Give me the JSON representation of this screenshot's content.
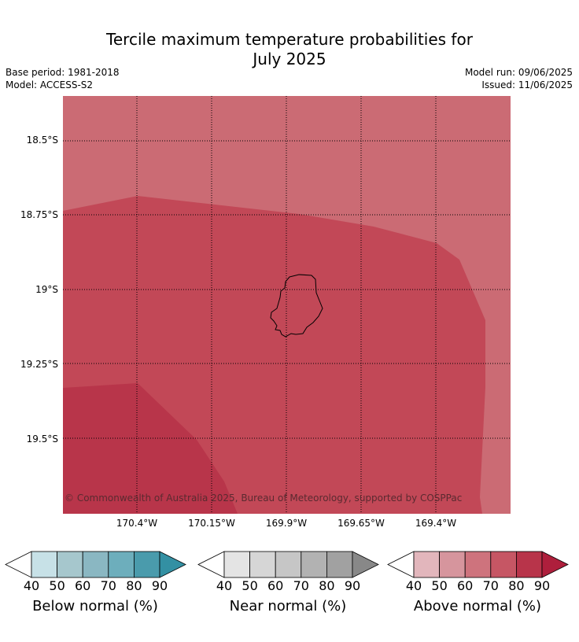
{
  "title_line1": "Tercile maximum temperature probabilities for",
  "title_line2": "July 2025",
  "meta": {
    "base_period": "Base period: 1981-2018",
    "model": "Model: ACCESS-S2",
    "model_run": "Model run: 09/06/2025",
    "issued": "Issued: 11/06/2025"
  },
  "lat_labels": [
    "18.5°S",
    "18.75°S",
    "19°S",
    "19.25°S",
    "19.5°S"
  ],
  "lon_labels": [
    "170.4°W",
    "170.15°W",
    "169.9°W",
    "169.65°W",
    "169.4°W"
  ],
  "copyright": "© Commonwealth of Australia 2025, Bureau of Meteorology, supported by COSPPac",
  "colors": {
    "above_60_70": "#cb6b74",
    "above_70_80": "#c24857",
    "above_80_90": "#b8354a",
    "gridline": "#000000"
  },
  "colorbars": [
    {
      "label": "Below normal (%)",
      "ticks": [
        "40",
        "50",
        "60",
        "70",
        "80",
        "90"
      ],
      "colors": [
        "#c7e1e7",
        "#a6c7cd",
        "#8ab7c2",
        "#6daebc",
        "#4a9bac",
        "#3390a3"
      ]
    },
    {
      "label": "Near normal (%)",
      "ticks": [
        "40",
        "50",
        "60",
        "70",
        "80",
        "90"
      ],
      "colors": [
        "#e4e4e4",
        "#d6d6d6",
        "#c6c6c6",
        "#b2b2b2",
        "#a1a1a1",
        "#888888"
      ]
    },
    {
      "label": "Above normal (%)",
      "ticks": [
        "40",
        "50",
        "60",
        "70",
        "80",
        "90"
      ],
      "colors": [
        "#e2b6bc",
        "#d6959d",
        "#ce737d",
        "#c65664",
        "#b8344a",
        "#ae1f3c"
      ]
    }
  ]
}
